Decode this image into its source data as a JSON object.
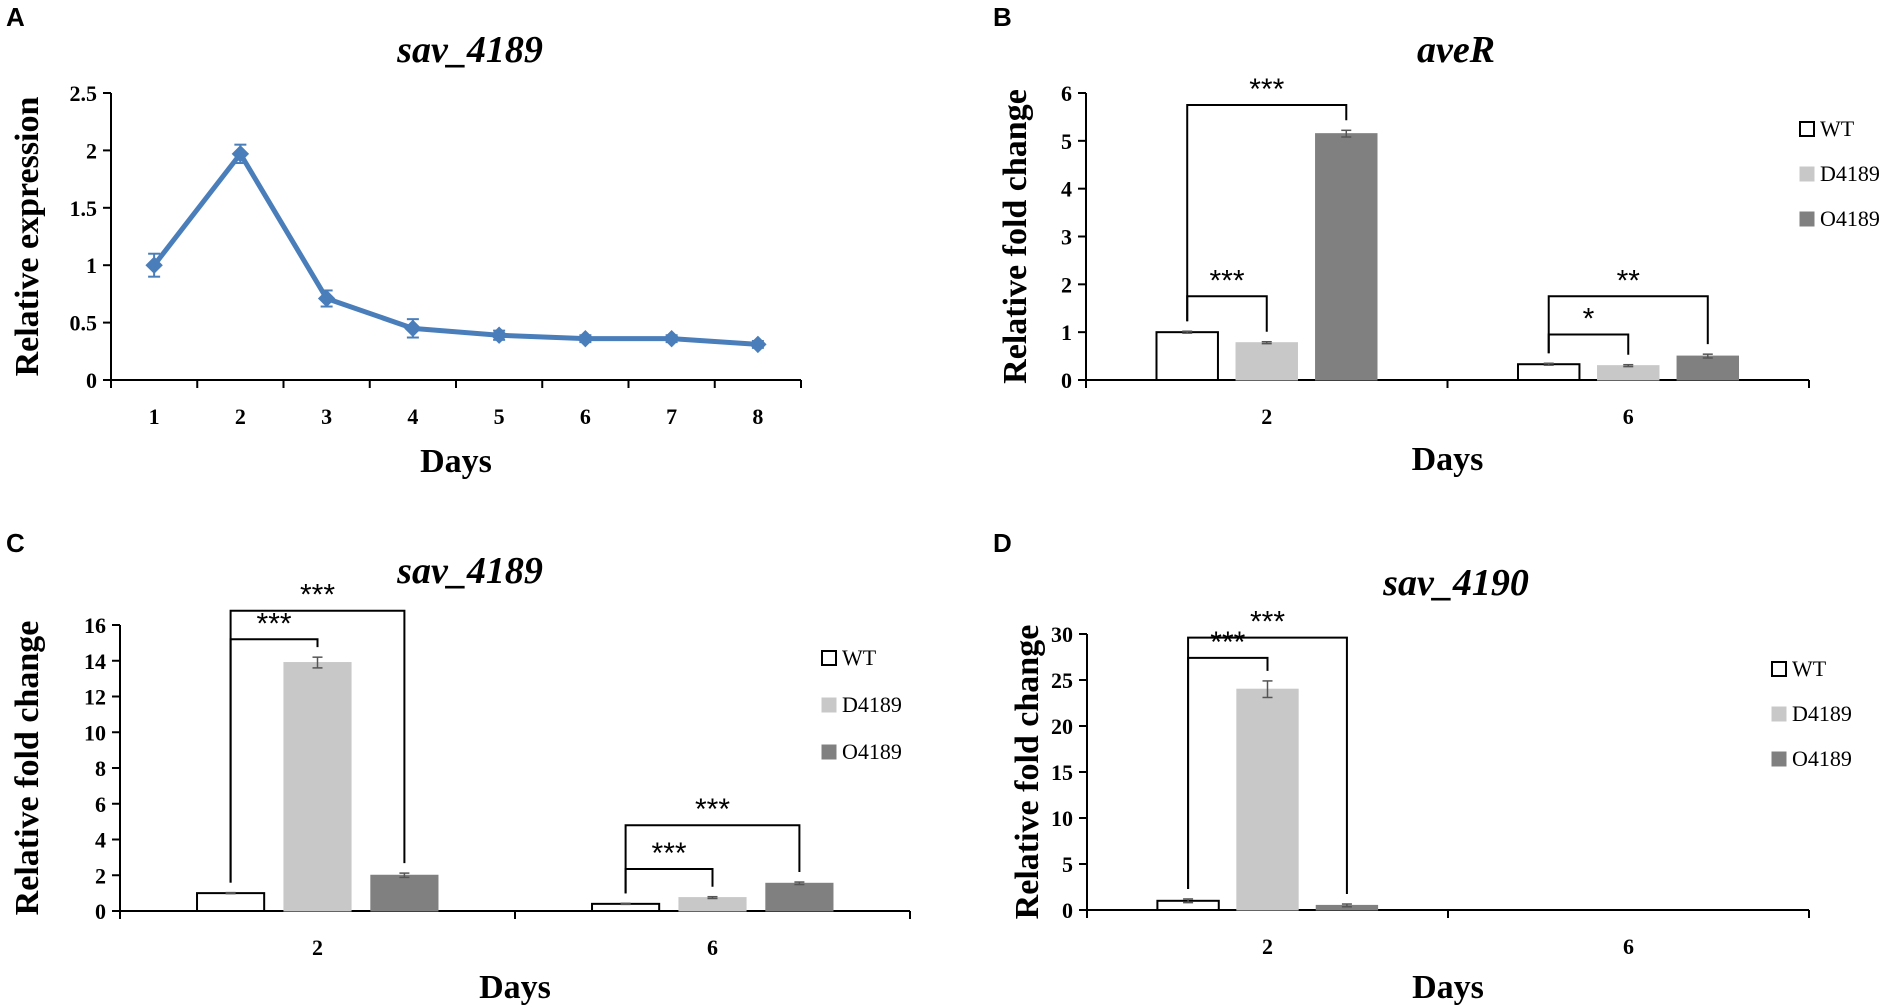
{
  "panels": [
    "A",
    "B",
    "C",
    "D"
  ],
  "colors": {
    "line": "#4a7ebb",
    "wt_fill": "#ffffff",
    "d4189_fill": "#c8c8c8",
    "o4189_fill": "#808080",
    "axis": "#000000",
    "error": "#555555"
  },
  "chart_data": [
    {
      "panel": "A",
      "type": "line",
      "title": "sav_4189",
      "xlabel": "Days",
      "ylabel": "Relative expression",
      "x": [
        1,
        2,
        3,
        4,
        5,
        6,
        7,
        8
      ],
      "xticks": [
        "1",
        "2",
        "3",
        "4",
        "5",
        "6",
        "7",
        "8"
      ],
      "yticks": [
        "0",
        "0.5",
        "1",
        "1.5",
        "2",
        "2.5"
      ],
      "ylim": [
        0,
        2.5
      ],
      "series": [
        {
          "name": "sav_4189",
          "values": [
            1.0,
            1.97,
            0.71,
            0.45,
            0.39,
            0.36,
            0.36,
            0.31
          ],
          "errors": [
            0.1,
            0.08,
            0.07,
            0.08,
            0.04,
            0.03,
            0.03,
            0.03
          ]
        }
      ]
    },
    {
      "panel": "B",
      "type": "bar",
      "title": "aveR",
      "xlabel": "Days",
      "ylabel": "Relative fold change",
      "categories": [
        "2",
        "6"
      ],
      "yticks": [
        "0",
        "1",
        "2",
        "3",
        "4",
        "5",
        "6"
      ],
      "ylim": [
        0,
        6
      ],
      "legend": [
        "WT",
        "D4189",
        "O4189"
      ],
      "series": [
        {
          "name": "WT",
          "values": [
            1.0,
            0.33
          ],
          "errors": [
            0.02,
            0.02
          ]
        },
        {
          "name": "D4189",
          "values": [
            0.78,
            0.3
          ],
          "errors": [
            0.02,
            0.02
          ]
        },
        {
          "name": "O4189",
          "values": [
            5.15,
            0.5
          ],
          "errors": [
            0.07,
            0.04
          ]
        }
      ],
      "significance": [
        {
          "category": 0,
          "from": 0,
          "to": 1,
          "label": "***",
          "level": 1.75
        },
        {
          "category": 0,
          "from": 0,
          "to": 2,
          "label": "***",
          "level": 5.75
        },
        {
          "category": 1,
          "from": 0,
          "to": 1,
          "label": "*",
          "level": 0.95
        },
        {
          "category": 1,
          "from": 0,
          "to": 2,
          "label": "**",
          "level": 1.75
        }
      ]
    },
    {
      "panel": "C",
      "type": "bar",
      "title": "sav_4189",
      "xlabel": "Days",
      "ylabel": "Relative fold change",
      "categories": [
        "2",
        "6"
      ],
      "yticks": [
        "0",
        "2",
        "4",
        "6",
        "8",
        "10",
        "12",
        "14",
        "16"
      ],
      "ylim": [
        0,
        16
      ],
      "legend": [
        "WT",
        "D4189",
        "O4189"
      ],
      "series": [
        {
          "name": "WT",
          "values": [
            1.0,
            0.4
          ],
          "errors": [
            0.03,
            0.03
          ]
        },
        {
          "name": "D4189",
          "values": [
            13.9,
            0.75
          ],
          "errors": [
            0.3,
            0.05
          ]
        },
        {
          "name": "O4189",
          "values": [
            2.0,
            1.55
          ],
          "errors": [
            0.12,
            0.07
          ]
        }
      ],
      "significance": [
        {
          "category": 0,
          "from": 0,
          "to": 1,
          "label": "***",
          "level": 15.2
        },
        {
          "category": 0,
          "from": 0,
          "to": 2,
          "label": "***",
          "level": 16.8
        },
        {
          "category": 1,
          "from": 0,
          "to": 1,
          "label": "***",
          "level": 2.35
        },
        {
          "category": 1,
          "from": 0,
          "to": 2,
          "label": "***",
          "level": 4.8
        }
      ]
    },
    {
      "panel": "D",
      "type": "bar",
      "title": "sav_4190",
      "xlabel": "Days",
      "ylabel": "Relative fold change",
      "categories": [
        "2",
        "6"
      ],
      "yticks": [
        "0",
        "5",
        "10",
        "15",
        "20",
        "25",
        "30"
      ],
      "ylim": [
        0,
        30
      ],
      "legend": [
        "WT",
        "D4189",
        "O4189"
      ],
      "series": [
        {
          "name": "WT",
          "values": [
            1.0,
            null
          ],
          "errors": [
            0.2,
            null
          ]
        },
        {
          "name": "D4189",
          "values": [
            24.0,
            null
          ],
          "errors": [
            0.9,
            null
          ]
        },
        {
          "name": "O4189",
          "values": [
            0.5,
            null
          ],
          "errors": [
            0.15,
            null
          ]
        }
      ],
      "significance": [
        {
          "category": 0,
          "from": 0,
          "to": 1,
          "label": "***",
          "level": 27.4
        },
        {
          "category": 0,
          "from": 0,
          "to": 2,
          "label": "***",
          "level": 29.6
        }
      ]
    }
  ]
}
